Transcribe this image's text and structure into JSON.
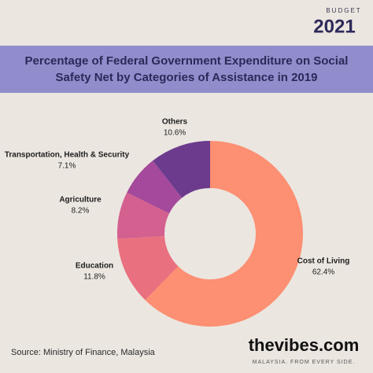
{
  "chart_data": {
    "type": "donut",
    "title": "Percentage of Federal Government Expenditure on Social Safety Net by Categories of Assistance in 2019",
    "categories": [
      "Cost of Living",
      "Education",
      "Agriculture",
      "Transportation, Health & Security",
      "Others"
    ],
    "values": [
      62.4,
      11.8,
      8.2,
      7.1,
      10.6
    ],
    "value_labels": [
      "62.4%",
      "11.8%",
      "8.2%",
      "7.1%",
      "10.6%"
    ],
    "colors": [
      "#fd8f72",
      "#e9707f",
      "#d3608f",
      "#a4499b",
      "#6c3b8e"
    ],
    "source": "Source: Ministry of Finance, Malaysia"
  },
  "budget_logo": {
    "label": "BUDGET",
    "year": "2021"
  },
  "brand_logo": {
    "name": "thevibes.com",
    "tagline": "MALAYSIA. FROM EVERY SIDE."
  }
}
